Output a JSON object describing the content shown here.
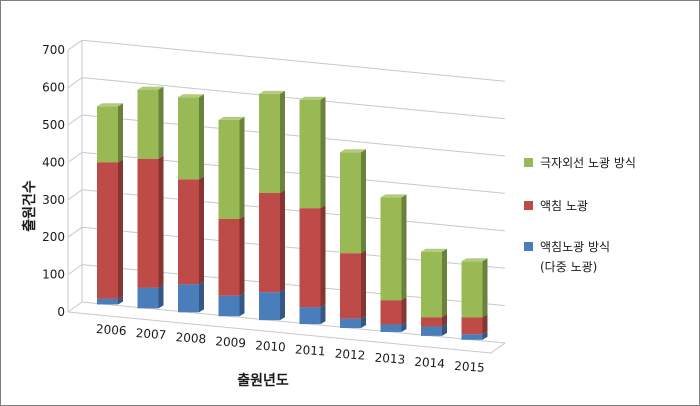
{
  "chart_data": {
    "type": "bar",
    "stacked": true,
    "style": "3d",
    "categories": [
      "2006",
      "2007",
      "2008",
      "2009",
      "2010",
      "2011",
      "2012",
      "2013",
      "2014",
      "2015"
    ],
    "series": [
      {
        "name": "액침노광 방식",
        "name_line2": "(다중 노광)",
        "color": "#4a7ebb",
        "values": [
          15,
          55,
          75,
          55,
          75,
          45,
          25,
          20,
          25,
          15
        ]
      },
      {
        "name": "액침 노광",
        "color": "#be4b48",
        "values": [
          365,
          345,
          280,
          205,
          265,
          265,
          175,
          65,
          25,
          45
        ]
      },
      {
        "name": "극자외선 노광 방식",
        "color": "#98b954",
        "values": [
          150,
          185,
          220,
          265,
          265,
          290,
          270,
          275,
          175,
          150
        ]
      }
    ],
    "ylabel": "출원건수",
    "xlabel": "출원년도",
    "ylim": [
      0,
      700
    ],
    "yticks": [
      0,
      100,
      200,
      300,
      400,
      500,
      600,
      700
    ],
    "grid": true,
    "legend_position": "right"
  }
}
